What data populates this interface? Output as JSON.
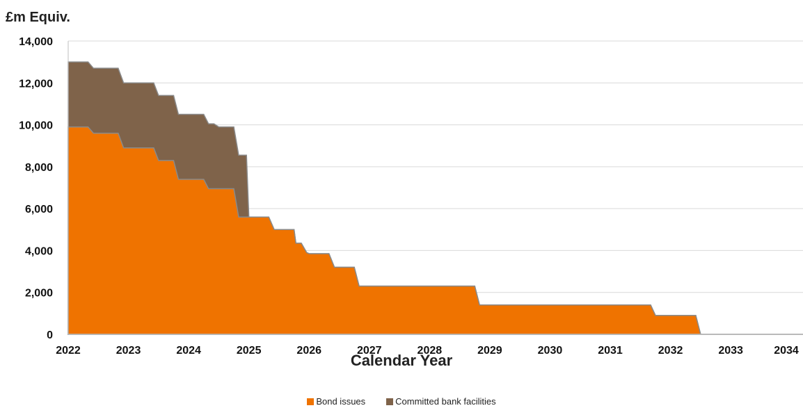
{
  "chart_data": {
    "type": "area",
    "stacked": true,
    "step": true,
    "title": "",
    "ylabel": "£m Equiv.",
    "xlabel": "Calendar Year",
    "xlim": [
      2022,
      2034.2
    ],
    "ylim": [
      0,
      14000
    ],
    "yticks": [
      0,
      2000,
      4000,
      6000,
      8000,
      10000,
      12000,
      14000
    ],
    "ytick_labels": [
      "0",
      "2,000",
      "4,000",
      "6,000",
      "8,000",
      "10,000",
      "12,000",
      "14,000"
    ],
    "xticks": [
      2022,
      2023,
      2024,
      2025,
      2026,
      2027,
      2028,
      2029,
      2030,
      2031,
      2032,
      2033,
      2034
    ],
    "xtick_labels": [
      "2022",
      "2023",
      "2024",
      "2025",
      "2026",
      "2027",
      "2028",
      "2029",
      "2030",
      "2031",
      "2032",
      "2033",
      "2034"
    ],
    "grid": true,
    "legend_position": "bottom",
    "series": [
      {
        "name": "Bond issues",
        "color": "#ef7300",
        "x": [
          2022,
          2022.33,
          2022.42,
          2022.83,
          2022.92,
          2023.42,
          2023.5,
          2023.75,
          2023.83,
          2024.25,
          2024.33,
          2024.75,
          2024.83,
          2024.96,
          2025.0,
          2025.33,
          2025.42,
          2025.75,
          2025.78,
          2025.87,
          2025.96,
          2026.0,
          2026.33,
          2026.42,
          2026.75,
          2026.83,
          2028.75,
          2028.83,
          2031.67,
          2031.75,
          2032.42,
          2032.5,
          2034.2
        ],
        "values": [
          9900,
          9900,
          9600,
          9600,
          8900,
          8900,
          8300,
          8300,
          7400,
          7400,
          6950,
          6950,
          5600,
          5600,
          5600,
          5600,
          5000,
          5000,
          4350,
          4350,
          3900,
          3850,
          3850,
          3200,
          3200,
          2300,
          2300,
          1400,
          1400,
          900,
          900,
          0,
          0
        ]
      },
      {
        "name": "Committed bank facilities",
        "color": "#7f634a",
        "x": [
          2022,
          2022.33,
          2022.42,
          2022.83,
          2022.92,
          2023.42,
          2023.5,
          2023.75,
          2023.83,
          2024.25,
          2024.33,
          2024.42,
          2024.5,
          2024.75,
          2024.83,
          2024.96,
          2025.0,
          2034.2
        ],
        "values": [
          3100,
          3100,
          3100,
          3100,
          3100,
          3100,
          3100,
          3100,
          3100,
          3100,
          3100,
          3100,
          2950,
          2950,
          2950,
          2950,
          0,
          0
        ]
      }
    ]
  }
}
